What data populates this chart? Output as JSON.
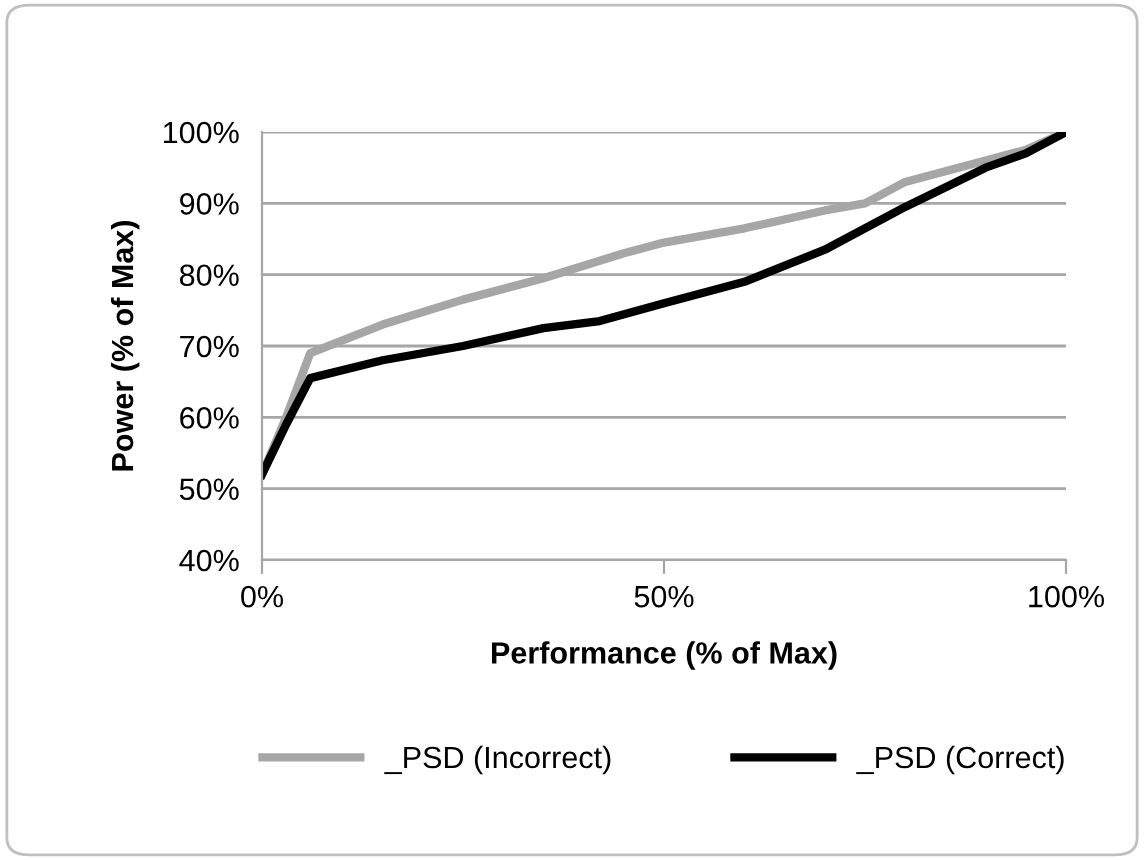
{
  "chart_data": {
    "type": "line",
    "xlabel": "Performance (% of Max)",
    "ylabel": "Power (% of Max)",
    "xlim": [
      0,
      100
    ],
    "xticks": [
      {
        "value": 0,
        "label": "0%"
      },
      {
        "value": 50,
        "label": "50%"
      },
      {
        "value": 100,
        "label": "100%"
      }
    ],
    "ylim": [
      40,
      100
    ],
    "yticks": [
      {
        "value": 40,
        "label": "40%"
      },
      {
        "value": 50,
        "label": "50%"
      },
      {
        "value": 60,
        "label": "60%"
      },
      {
        "value": 70,
        "label": "70%"
      },
      {
        "value": 80,
        "label": "80%"
      },
      {
        "value": 90,
        "label": "90%"
      },
      {
        "value": 100,
        "label": "100%"
      }
    ],
    "grid": "y",
    "legend": "bottom",
    "marker": "none",
    "line_style": "solid",
    "series": [
      {
        "name": "_PSD (Incorrect)",
        "color": "#a6a6a6",
        "x": [
          0,
          3,
          6,
          15,
          25,
          35,
          45,
          50,
          60,
          70,
          75,
          80,
          85,
          90,
          95,
          100
        ],
        "values": [
          52,
          60,
          69,
          73,
          76.5,
          79.5,
          83,
          84.5,
          86.5,
          89,
          90,
          93,
          94.5,
          96,
          97.5,
          100
        ]
      },
      {
        "name": "_PSD (Correct)",
        "color": "#000000",
        "x": [
          0,
          3,
          6,
          15,
          25,
          35,
          42,
          50,
          60,
          70,
          80,
          90,
          95,
          100
        ],
        "values": [
          52,
          59,
          65.5,
          68,
          70,
          72.5,
          73.5,
          76,
          79,
          83.5,
          89.5,
          95,
          97,
          100
        ]
      }
    ]
  }
}
